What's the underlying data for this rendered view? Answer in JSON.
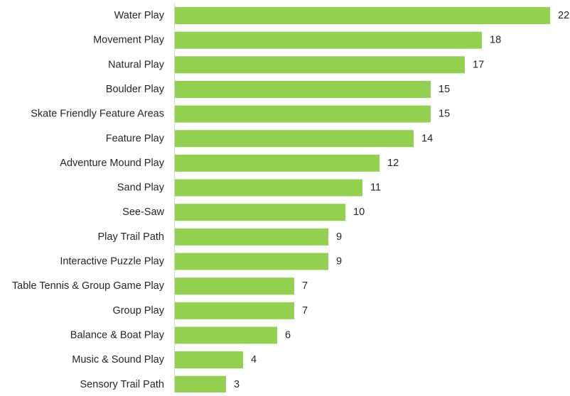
{
  "chart_data": {
    "type": "bar",
    "orientation": "horizontal",
    "title": "",
    "xlabel": "",
    "ylabel": "",
    "categories": [
      "Water Play",
      "Movement Play",
      "Natural Play",
      "Boulder Play",
      "Skate Friendly Feature Areas",
      "Feature Play",
      "Adventure Mound Play",
      "Sand Play",
      "See-Saw",
      "Play Trail Path",
      "Interactive Puzzle Play",
      "Table Tennis & Group Game Play",
      "Group Play",
      "Balance & Boat Play",
      "Music & Sound Play",
      "Sensory Trail Path"
    ],
    "values": [
      22,
      18,
      17,
      15,
      15,
      14,
      12,
      11,
      10,
      9,
      9,
      7,
      7,
      6,
      4,
      3
    ],
    "xlim": [
      0,
      22
    ],
    "data_labels": true,
    "grid": false,
    "legend": "none",
    "colors": {
      "bar": "#92d050",
      "axis": "#d9d9d9",
      "text": "#262626"
    }
  }
}
